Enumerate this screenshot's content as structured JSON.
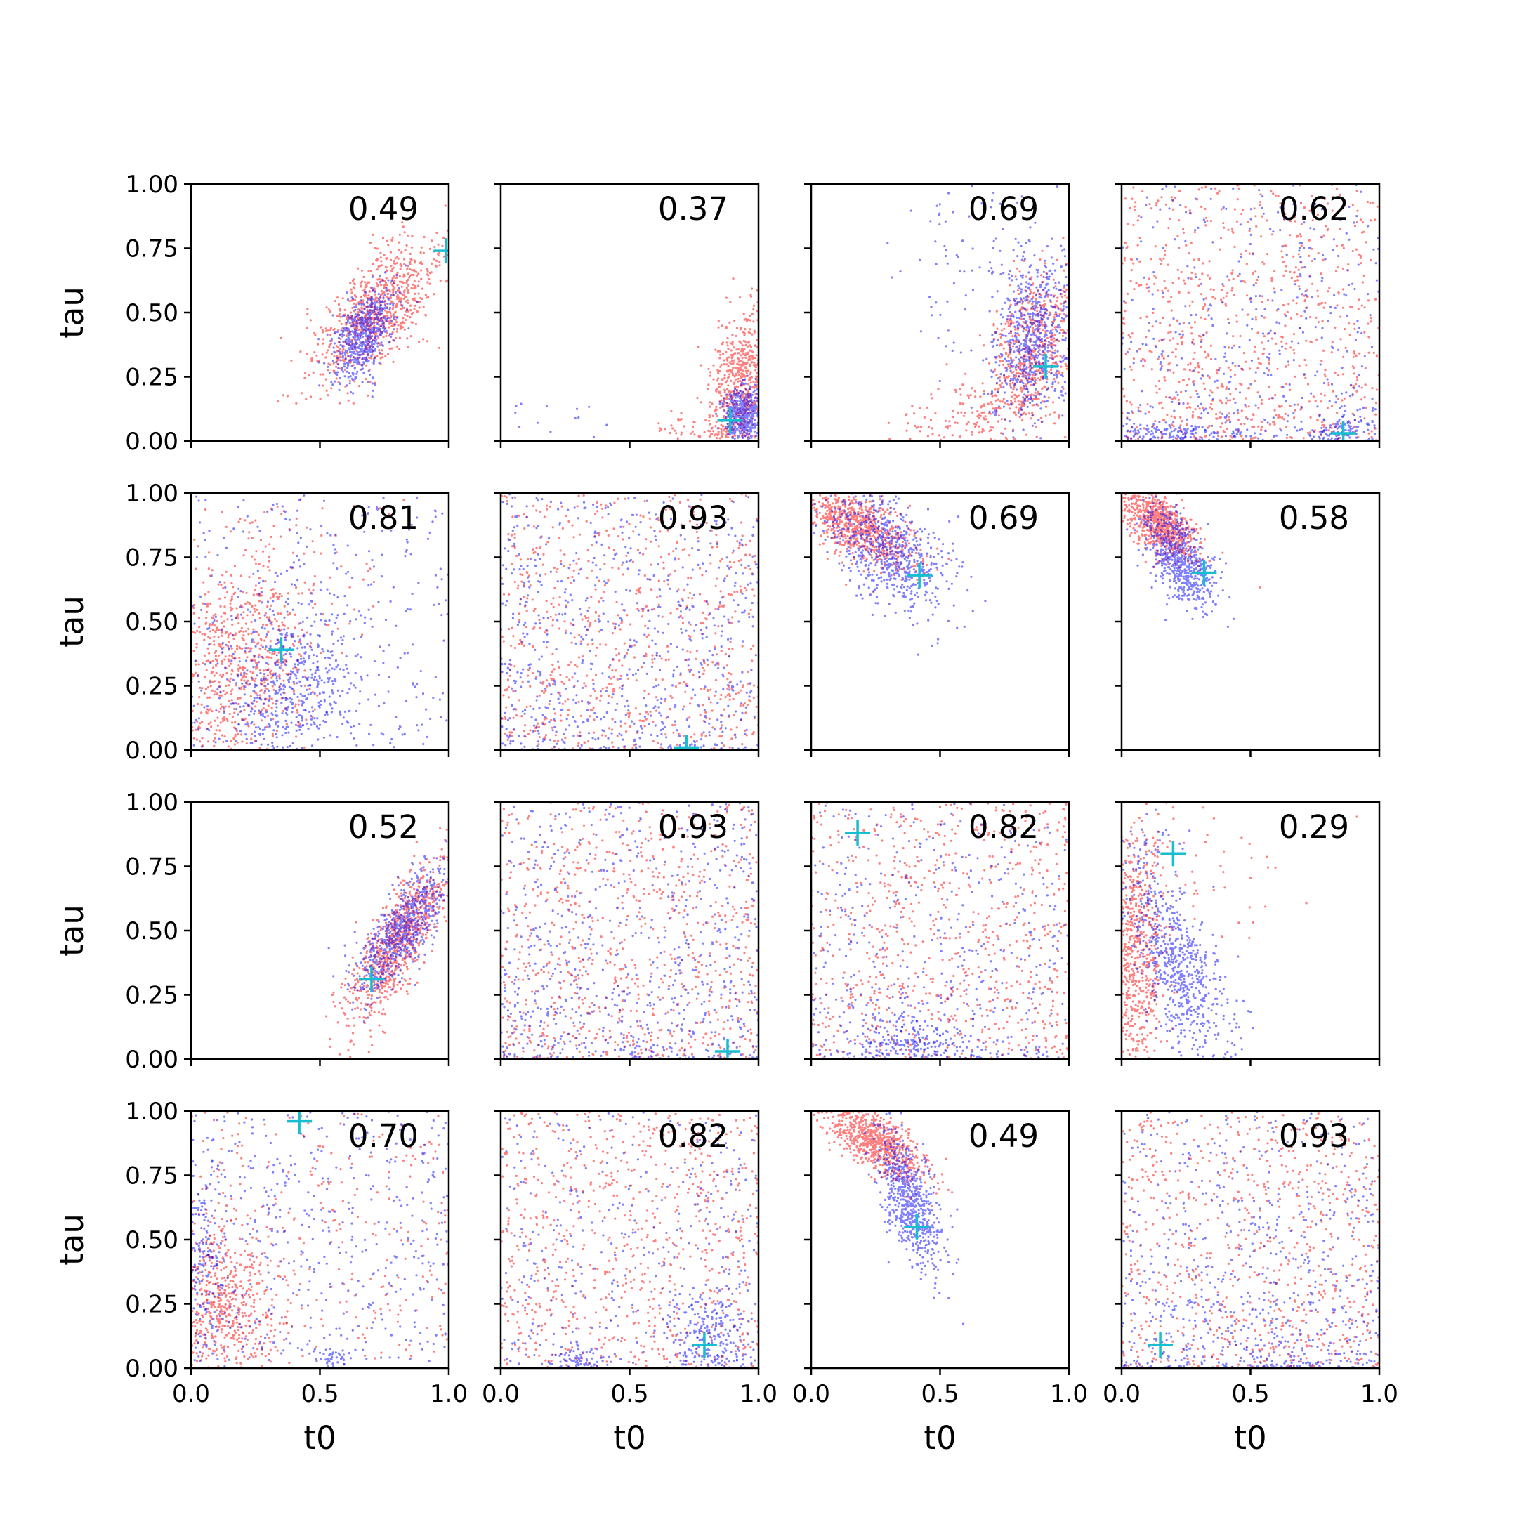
{
  "figure": {
    "xlabel": "t0",
    "ylabel": "tau",
    "x_tick_labels": [
      "0.0",
      "0.5",
      "1.0"
    ],
    "y_tick_labels": [
      "0.00",
      "0.25",
      "0.50",
      "0.75",
      "1.00"
    ]
  },
  "colors": {
    "series_a": "#ff0000",
    "series_b": "#0000ff",
    "marker": "#17becf"
  },
  "chart_data": [
    {
      "type": "scatter",
      "row": 1,
      "col": 1,
      "annotation": "0.49",
      "xlim": [
        0,
        1
      ],
      "ylim": [
        0,
        1
      ],
      "marker": {
        "x": 0.99,
        "y": 0.74
      },
      "series": [
        {
          "color": "red",
          "clusters": [
            {
              "mx": 0.72,
              "my": 0.5,
              "sx": 0.12,
              "sy": 0.14,
              "corr": 0.65,
              "n": 850
            }
          ]
        },
        {
          "color": "blue",
          "clusters": [
            {
              "mx": 0.67,
              "my": 0.42,
              "sx": 0.06,
              "sy": 0.09,
              "corr": 0.5,
              "n": 650
            }
          ]
        }
      ]
    },
    {
      "type": "scatter",
      "row": 1,
      "col": 2,
      "annotation": "0.37",
      "xlim": [
        0,
        1
      ],
      "ylim": [
        0,
        1
      ],
      "marker": {
        "x": 0.89,
        "y": 0.08
      },
      "series": [
        {
          "color": "red",
          "clusters": [
            {
              "mx": 0.93,
              "my": 0.22,
              "sx": 0.06,
              "sy": 0.14,
              "corr": 0.2,
              "n": 650
            },
            {
              "mx": 0.75,
              "my": 0.05,
              "sx": 0.08,
              "sy": 0.04,
              "corr": 0,
              "n": 60
            }
          ]
        },
        {
          "color": "blue",
          "clusters": [
            {
              "mx": 0.94,
              "my": 0.1,
              "sx": 0.035,
              "sy": 0.05,
              "corr": 0,
              "n": 500
            },
            {
              "mx": 0.2,
              "my": 0.1,
              "sx": 0.15,
              "sy": 0.06,
              "corr": 0,
              "n": 14
            }
          ]
        }
      ]
    },
    {
      "type": "scatter",
      "row": 1,
      "col": 3,
      "annotation": "0.69",
      "xlim": [
        0,
        1
      ],
      "ylim": [
        0,
        1
      ],
      "marker": {
        "x": 0.91,
        "y": 0.29
      },
      "series": [
        {
          "color": "red",
          "clusters": [
            {
              "mx": 0.86,
              "my": 0.35,
              "sx": 0.08,
              "sy": 0.15,
              "corr": 0.3,
              "n": 600
            },
            {
              "mx": 0.6,
              "my": 0.1,
              "sx": 0.15,
              "sy": 0.07,
              "corr": 0.3,
              "n": 150
            }
          ]
        },
        {
          "color": "blue",
          "clusters": [
            {
              "mx": 0.86,
              "my": 0.38,
              "sx": 0.08,
              "sy": 0.15,
              "corr": 0.3,
              "n": 650
            },
            {
              "mx": 0.7,
              "my": 0.65,
              "sx": 0.18,
              "sy": 0.22,
              "corr": 0,
              "n": 120
            }
          ]
        }
      ]
    },
    {
      "type": "scatter",
      "row": 1,
      "col": 4,
      "annotation": "0.62",
      "xlim": [
        0,
        1
      ],
      "ylim": [
        0,
        1
      ],
      "marker": {
        "x": 0.86,
        "y": 0.03
      },
      "series": [
        {
          "color": "red",
          "uniform": true,
          "ypow": 1.3,
          "n": 850
        },
        {
          "color": "blue",
          "uniform": true,
          "ypow": 1.6,
          "n": 450
        },
        {
          "color": "blue",
          "clusters": [
            {
              "mx": 0.2,
              "my": 0.03,
              "sx": 0.15,
              "sy": 0.02,
              "corr": 0,
              "n": 150
            },
            {
              "mx": 0.85,
              "my": 0.04,
              "sx": 0.05,
              "sy": 0.03,
              "corr": 0,
              "n": 100
            }
          ]
        }
      ]
    },
    {
      "type": "scatter",
      "row": 2,
      "col": 1,
      "annotation": "0.81",
      "xlim": [
        0,
        1
      ],
      "ylim": [
        0,
        1
      ],
      "marker": {
        "x": 0.35,
        "y": 0.39
      },
      "series": [
        {
          "color": "red",
          "clusters": [
            {
              "mx": 0.18,
              "my": 0.3,
              "sx": 0.14,
              "sy": 0.2,
              "corr": 0,
              "n": 700
            },
            {
              "mx": 0.3,
              "my": 0.7,
              "sx": 0.2,
              "sy": 0.2,
              "corr": 0,
              "n": 150
            }
          ]
        },
        {
          "color": "blue",
          "clusters": [
            {
              "mx": 0.4,
              "my": 0.25,
              "sx": 0.12,
              "sy": 0.15,
              "corr": 0,
              "n": 500
            }
          ]
        },
        {
          "color": "blue",
          "uniform": true,
          "ypow": 1,
          "n": 350
        }
      ]
    },
    {
      "type": "scatter",
      "row": 2,
      "col": 2,
      "annotation": "0.93",
      "xlim": [
        0,
        1
      ],
      "ylim": [
        0,
        1
      ],
      "marker": {
        "x": 0.72,
        "y": 0.01
      },
      "series": [
        {
          "color": "red",
          "uniform": true,
          "ypow": 1.2,
          "n": 750
        },
        {
          "color": "blue",
          "uniform": true,
          "ypow": 1.5,
          "n": 750
        }
      ]
    },
    {
      "type": "scatter",
      "row": 2,
      "col": 3,
      "annotation": "0.69",
      "xlim": [
        0,
        1
      ],
      "ylim": [
        0,
        1
      ],
      "marker": {
        "x": 0.42,
        "y": 0.68
      },
      "series": [
        {
          "color": "red",
          "clusters": [
            {
              "mx": 0.18,
              "my": 0.87,
              "sx": 0.11,
              "sy": 0.08,
              "corr": -0.6,
              "n": 750
            }
          ]
        },
        {
          "color": "blue",
          "clusters": [
            {
              "mx": 0.3,
              "my": 0.78,
              "sx": 0.12,
              "sy": 0.12,
              "corr": -0.5,
              "n": 700
            }
          ]
        }
      ]
    },
    {
      "type": "scatter",
      "row": 2,
      "col": 4,
      "annotation": "0.58",
      "xlim": [
        0,
        1
      ],
      "ylim": [
        0,
        1
      ],
      "marker": {
        "x": 0.32,
        "y": 0.69
      },
      "series": [
        {
          "color": "red",
          "clusters": [
            {
              "mx": 0.15,
              "my": 0.88,
              "sx": 0.07,
              "sy": 0.07,
              "corr": -0.6,
              "n": 750
            }
          ]
        },
        {
          "color": "blue",
          "clusters": [
            {
              "mx": 0.22,
              "my": 0.75,
              "sx": 0.07,
              "sy": 0.1,
              "corr": -0.6,
              "n": 650
            }
          ]
        }
      ]
    },
    {
      "type": "scatter",
      "row": 3,
      "col": 1,
      "annotation": "0.52",
      "xlim": [
        0,
        1
      ],
      "ylim": [
        0,
        1
      ],
      "marker": {
        "x": 0.7,
        "y": 0.31
      },
      "series": [
        {
          "color": "red",
          "clusters": [
            {
              "mx": 0.8,
              "my": 0.45,
              "sx": 0.1,
              "sy": 0.16,
              "corr": 0.8,
              "n": 850
            }
          ]
        },
        {
          "color": "blue",
          "clusters": [
            {
              "mx": 0.82,
              "my": 0.5,
              "sx": 0.09,
              "sy": 0.12,
              "corr": 0.75,
              "n": 700
            }
          ]
        }
      ]
    },
    {
      "type": "scatter",
      "row": 3,
      "col": 2,
      "annotation": "0.93",
      "xlim": [
        0,
        1
      ],
      "ylim": [
        0,
        1
      ],
      "marker": {
        "x": 0.88,
        "y": 0.03
      },
      "series": [
        {
          "color": "red",
          "uniform": true,
          "ypow": 1.3,
          "n": 750
        },
        {
          "color": "blue",
          "uniform": true,
          "ypow": 1.6,
          "n": 750
        }
      ]
    },
    {
      "type": "scatter",
      "row": 3,
      "col": 3,
      "annotation": "0.82",
      "xlim": [
        0,
        1
      ],
      "ylim": [
        0,
        1
      ],
      "marker": {
        "x": 0.18,
        "y": 0.88
      },
      "series": [
        {
          "color": "red",
          "uniform": true,
          "ypow": 1.1,
          "n": 750
        },
        {
          "color": "blue",
          "uniform": true,
          "ypow": 1.6,
          "n": 500
        },
        {
          "color": "blue",
          "clusters": [
            {
              "mx": 0.38,
              "my": 0.06,
              "sx": 0.1,
              "sy": 0.05,
              "corr": 0,
              "n": 200
            }
          ]
        }
      ]
    },
    {
      "type": "scatter",
      "row": 3,
      "col": 4,
      "annotation": "0.29",
      "xlim": [
        0,
        1
      ],
      "ylim": [
        0,
        1
      ],
      "marker": {
        "x": 0.2,
        "y": 0.8
      },
      "series": [
        {
          "color": "red",
          "clusters": [
            {
              "mx": 0.05,
              "my": 0.4,
              "sx": 0.06,
              "sy": 0.25,
              "corr": 0,
              "n": 700
            },
            {
              "mx": 0.35,
              "my": 0.7,
              "sx": 0.2,
              "sy": 0.15,
              "corr": 0,
              "n": 50
            }
          ]
        },
        {
          "color": "blue",
          "clusters": [
            {
              "mx": 0.22,
              "my": 0.35,
              "sx": 0.1,
              "sy": 0.18,
              "corr": -0.6,
              "n": 650
            },
            {
              "mx": 0.1,
              "my": 0.8,
              "sx": 0.08,
              "sy": 0.1,
              "corr": 0,
              "n": 60
            }
          ]
        }
      ]
    },
    {
      "type": "scatter",
      "row": 4,
      "col": 1,
      "annotation": "0.70",
      "xlim": [
        0,
        1
      ],
      "ylim": [
        0,
        1
      ],
      "marker": {
        "x": 0.42,
        "y": 0.96
      },
      "series": [
        {
          "color": "red",
          "clusters": [
            {
              "mx": 0.12,
              "my": 0.25,
              "sx": 0.1,
              "sy": 0.15,
              "corr": 0,
              "n": 550
            }
          ]
        },
        {
          "color": "red",
          "uniform": true,
          "ypow": 1,
          "n": 300
        },
        {
          "color": "blue",
          "uniform": true,
          "ypow": 1,
          "n": 450
        },
        {
          "color": "blue",
          "clusters": [
            {
              "mx": 0.05,
              "my": 0.4,
              "sx": 0.05,
              "sy": 0.2,
              "corr": 0,
              "n": 200
            },
            {
              "mx": 0.55,
              "my": 0.03,
              "sx": 0.03,
              "sy": 0.02,
              "corr": 0,
              "n": 40
            }
          ]
        }
      ]
    },
    {
      "type": "scatter",
      "row": 4,
      "col": 2,
      "annotation": "0.82",
      "xlim": [
        0,
        1
      ],
      "ylim": [
        0,
        1
      ],
      "marker": {
        "x": 0.79,
        "y": 0.09
      },
      "series": [
        {
          "color": "red",
          "uniform": true,
          "ypow": 1.1,
          "n": 750
        },
        {
          "color": "blue",
          "uniform": true,
          "ypow": 1.4,
          "n": 400
        },
        {
          "color": "blue",
          "clusters": [
            {
              "mx": 0.82,
              "my": 0.12,
              "sx": 0.08,
              "sy": 0.1,
              "corr": 0,
              "n": 250
            },
            {
              "mx": 0.3,
              "my": 0.03,
              "sx": 0.04,
              "sy": 0.02,
              "corr": 0,
              "n": 60
            }
          ]
        }
      ]
    },
    {
      "type": "scatter",
      "row": 4,
      "col": 3,
      "annotation": "0.49",
      "xlim": [
        0,
        1
      ],
      "ylim": [
        0,
        1
      ],
      "marker": {
        "x": 0.41,
        "y": 0.55
      },
      "series": [
        {
          "color": "red",
          "clusters": [
            {
              "mx": 0.25,
              "my": 0.88,
              "sx": 0.1,
              "sy": 0.08,
              "corr": -0.7,
              "n": 750
            }
          ]
        },
        {
          "color": "blue",
          "clusters": [
            {
              "mx": 0.38,
              "my": 0.65,
              "sx": 0.06,
              "sy": 0.13,
              "corr": -0.6,
              "n": 650
            }
          ]
        }
      ]
    },
    {
      "type": "scatter",
      "row": 4,
      "col": 4,
      "annotation": "0.93",
      "xlim": [
        0,
        1
      ],
      "ylim": [
        0,
        1
      ],
      "marker": {
        "x": 0.15,
        "y": 0.09
      },
      "series": [
        {
          "color": "red",
          "uniform": true,
          "ypow": 1.2,
          "n": 750
        },
        {
          "color": "blue",
          "uniform": true,
          "ypow": 1.8,
          "n": 750
        }
      ]
    }
  ]
}
